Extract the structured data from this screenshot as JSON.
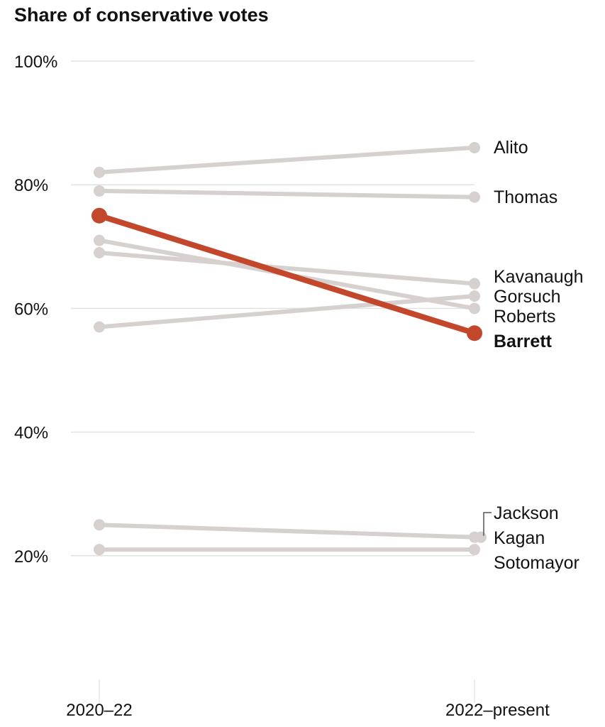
{
  "chart_data": {
    "type": "line",
    "title": "Share of conservative votes",
    "categories": [
      "2020–22",
      "2022–present"
    ],
    "ylim": [
      0,
      100
    ],
    "yticks": [
      20,
      40,
      60,
      80,
      100
    ],
    "ytick_labels": [
      "20%",
      "40%",
      "60%",
      "80%",
      "100%"
    ],
    "grid": true,
    "highlight_color": "#c3472b",
    "base_color": "#d6d1ce",
    "series": [
      {
        "name": "Alito",
        "values": [
          82,
          86
        ]
      },
      {
        "name": "Thomas",
        "values": [
          79,
          78
        ]
      },
      {
        "name": "Kavanaugh",
        "values": [
          69,
          64
        ]
      },
      {
        "name": "Gorsuch",
        "values": [
          57,
          62
        ]
      },
      {
        "name": "Roberts",
        "values": [
          71,
          60
        ]
      },
      {
        "name": "Barrett",
        "values": [
          75,
          56
        ],
        "highlight": true
      },
      {
        "name": "Jackson",
        "values": [
          null,
          23
        ]
      },
      {
        "name": "Kagan",
        "values": [
          25,
          23
        ]
      },
      {
        "name": "Sotomayor",
        "values": [
          21,
          21
        ]
      }
    ]
  }
}
